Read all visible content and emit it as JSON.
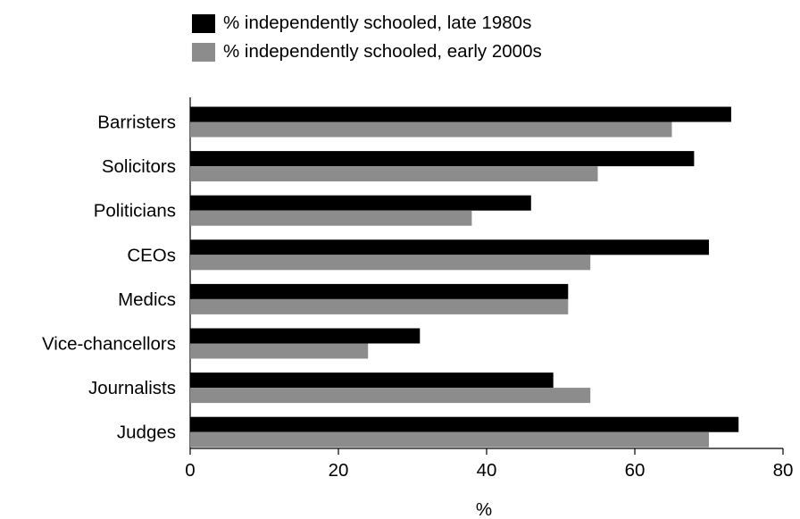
{
  "chart_data": {
    "type": "bar",
    "orientation": "horizontal",
    "categories": [
      "Barristers",
      "Solicitors",
      "Politicians",
      "CEOs",
      "Medics",
      "Vice-chancellors",
      "Journalists",
      "Judges"
    ],
    "series": [
      {
        "name": "% independently schooled, late 1980s",
        "color": "#000000",
        "values": [
          73,
          68,
          46,
          70,
          51,
          31,
          49,
          74
        ]
      },
      {
        "name": "% independently schooled, early 2000s",
        "color": "#8c8c8c",
        "values": [
          65,
          55,
          38,
          54,
          51,
          24,
          54,
          70
        ]
      }
    ],
    "xlabel": "%",
    "ylabel": "",
    "xlim": [
      0,
      80
    ],
    "xticks": [
      0,
      20,
      40,
      60,
      80
    ],
    "grid": false,
    "legend_position": "top"
  }
}
